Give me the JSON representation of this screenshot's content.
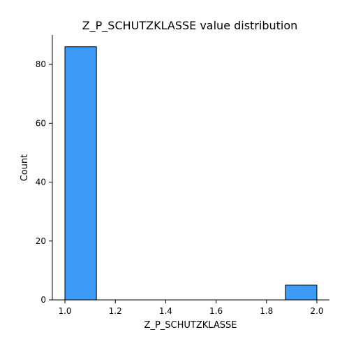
{
  "chart_data": {
    "type": "bar",
    "title": "Z_P_SCHUTZKLASSE value distribution",
    "xlabel": "Z_P_SCHUTZKLASSE",
    "ylabel": "Count",
    "xlim": [
      0.95,
      2.05
    ],
    "ylim": [
      0,
      90
    ],
    "x_ticks": [
      1.0,
      1.2,
      1.4,
      1.6,
      1.8,
      2.0
    ],
    "x_tick_labels": [
      "1.0",
      "1.2",
      "1.4",
      "1.6",
      "1.8",
      "2.0"
    ],
    "y_ticks": [
      0,
      20,
      40,
      60,
      80
    ],
    "y_tick_labels": [
      "0",
      "20",
      "40",
      "60",
      "80"
    ],
    "bins": [
      {
        "x0": 1.0,
        "x1": 1.125,
        "count": 86
      },
      {
        "x0": 1.875,
        "x1": 2.0,
        "count": 5
      }
    ],
    "bar_color": "#3d9af7",
    "edge_color": "#000000",
    "grid": false
  }
}
